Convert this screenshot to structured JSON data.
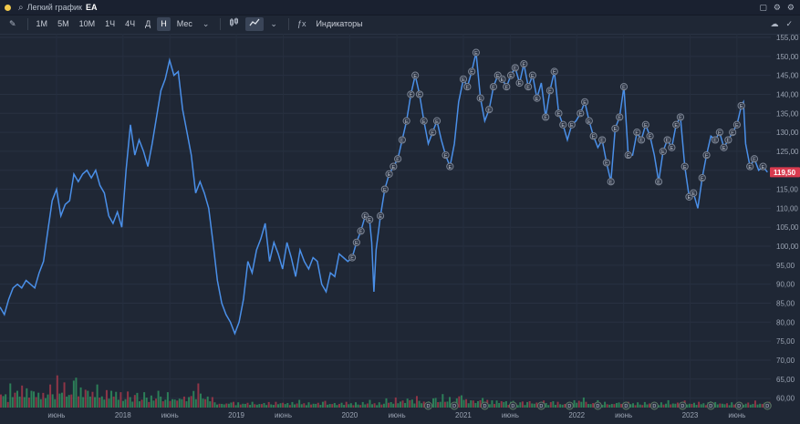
{
  "window": {
    "search_icon": "⌕",
    "title": "Легкий график",
    "ticker": "EA",
    "right_icons": [
      "▢",
      "⚙",
      "⚙"
    ]
  },
  "toolbar": {
    "pencil_icon": "✎",
    "timeframes": [
      "1М",
      "5М",
      "10М",
      "1Ч",
      "4Ч",
      "Д",
      "Н",
      "Мес"
    ],
    "active_timeframe": "Н",
    "dropdown_icon": "⌄",
    "indicators_label": "Индикаторы",
    "indicators_icon": "ƒx",
    "cloud_icon": "☁",
    "check_icon": "✓"
  },
  "colors": {
    "line": "#4a8fe8",
    "price_tag": "#d93b4f",
    "vol_up": "#2f8f5e",
    "vol_down": "#a5384a",
    "marker": "#7c8594",
    "dividend": "#5d7a64"
  },
  "price_tag": "119,50",
  "dividend_letter": "D",
  "event_letter": "E",
  "chart_data": {
    "type": "line",
    "ylim": [
      57.5,
      155
    ],
    "yticks": [
      "155,00",
      "150,00",
      "145,00",
      "140,00",
      "135,00",
      "130,00",
      "125,00",
      "120,00",
      "115,00",
      "110,00",
      "105,00",
      "100,00",
      "95,00",
      "90,00",
      "85,00",
      "80,00",
      "75,00",
      "70,00",
      "65,00",
      "60,00"
    ],
    "ytick_values": [
      155,
      150,
      145,
      140,
      135,
      130,
      125,
      120,
      115,
      110,
      105,
      100,
      95,
      90,
      85,
      80,
      75,
      70,
      65,
      60
    ],
    "xticks": [
      "июнь",
      "2018",
      "июнь",
      "2019",
      "июнь",
      "2020",
      "июнь",
      "2021",
      "июнь",
      "2022",
      "июнь",
      "2023",
      "июнь"
    ],
    "xtick_dates": [
      "2017-06-01",
      "2018-01-01",
      "2018-06-01",
      "2019-01-01",
      "2019-06-01",
      "2020-01-01",
      "2020-06-01",
      "2021-01-01",
      "2021-06-01",
      "2022-01-01",
      "2022-06-01",
      "2023-01-01",
      "2023-06-01"
    ],
    "series": [
      {
        "values": [
          [
            "2016-12-01",
            84
          ],
          [
            "2016-12-15",
            82
          ],
          [
            "2016-12-29",
            86
          ],
          [
            "2017-01-12",
            89
          ],
          [
            "2017-01-26",
            90
          ],
          [
            "2017-02-09",
            89
          ],
          [
            "2017-02-23",
            91
          ],
          [
            "2017-03-09",
            90
          ],
          [
            "2017-03-23",
            89
          ],
          [
            "2017-04-06",
            93
          ],
          [
            "2017-04-20",
            96
          ],
          [
            "2017-05-04",
            104
          ],
          [
            "2017-05-18",
            112
          ],
          [
            "2017-06-01",
            115
          ],
          [
            "2017-06-15",
            108
          ],
          [
            "2017-06-29",
            111
          ],
          [
            "2017-07-13",
            112
          ],
          [
            "2017-07-27",
            119
          ],
          [
            "2017-08-10",
            117
          ],
          [
            "2017-08-24",
            119
          ],
          [
            "2017-09-07",
            120
          ],
          [
            "2017-09-21",
            118
          ],
          [
            "2017-10-05",
            120
          ],
          [
            "2017-10-19",
            116
          ],
          [
            "2017-11-02",
            114
          ],
          [
            "2017-11-16",
            108
          ],
          [
            "2017-11-30",
            106
          ],
          [
            "2017-12-14",
            109
          ],
          [
            "2017-12-28",
            105
          ],
          [
            "2018-01-11",
            120
          ],
          [
            "2018-01-25",
            132
          ],
          [
            "2018-02-08",
            124
          ],
          [
            "2018-02-22",
            128
          ],
          [
            "2018-03-08",
            125
          ],
          [
            "2018-03-22",
            121
          ],
          [
            "2018-04-05",
            127
          ],
          [
            "2018-04-19",
            134
          ],
          [
            "2018-05-03",
            141
          ],
          [
            "2018-05-17",
            144
          ],
          [
            "2018-05-31",
            149
          ],
          [
            "2018-06-14",
            145
          ],
          [
            "2018-06-28",
            146
          ],
          [
            "2018-07-12",
            136
          ],
          [
            "2018-07-26",
            130
          ],
          [
            "2018-08-09",
            124
          ],
          [
            "2018-08-23",
            114
          ],
          [
            "2018-09-06",
            117
          ],
          [
            "2018-09-20",
            114
          ],
          [
            "2018-10-04",
            110
          ],
          [
            "2018-10-18",
            101
          ],
          [
            "2018-11-01",
            91
          ],
          [
            "2018-11-15",
            85
          ],
          [
            "2018-11-29",
            82
          ],
          [
            "2018-12-13",
            80
          ],
          [
            "2018-12-27",
            77
          ],
          [
            "2019-01-10",
            80
          ],
          [
            "2019-01-24",
            86
          ],
          [
            "2019-02-07",
            96
          ],
          [
            "2019-02-21",
            93
          ],
          [
            "2019-03-07",
            99
          ],
          [
            "2019-03-21",
            102
          ],
          [
            "2019-04-04",
            106
          ],
          [
            "2019-04-18",
            96
          ],
          [
            "2019-05-02",
            101
          ],
          [
            "2019-05-16",
            98
          ],
          [
            "2019-05-30",
            94
          ],
          [
            "2019-06-13",
            101
          ],
          [
            "2019-06-27",
            97
          ],
          [
            "2019-07-11",
            92
          ],
          [
            "2019-07-25",
            99
          ],
          [
            "2019-08-08",
            96
          ],
          [
            "2019-08-22",
            94
          ],
          [
            "2019-09-05",
            97
          ],
          [
            "2019-09-19",
            96
          ],
          [
            "2019-10-03",
            90
          ],
          [
            "2019-10-17",
            88
          ],
          [
            "2019-10-31",
            93
          ],
          [
            "2019-11-14",
            92
          ],
          [
            "2019-11-28",
            98
          ],
          [
            "2019-12-12",
            97
          ],
          [
            "2019-12-26",
            96
          ],
          [
            "2020-01-09",
            97
          ],
          [
            "2020-01-23",
            101
          ],
          [
            "2020-02-06",
            104
          ],
          [
            "2020-02-20",
            108
          ],
          [
            "2020-03-05",
            107
          ],
          [
            "2020-03-12",
            101
          ],
          [
            "2020-03-19",
            88
          ],
          [
            "2020-03-26",
            99
          ],
          [
            "2020-04-09",
            108
          ],
          [
            "2020-04-23",
            115
          ],
          [
            "2020-05-07",
            119
          ],
          [
            "2020-05-21",
            121
          ],
          [
            "2020-06-04",
            123
          ],
          [
            "2020-06-18",
            128
          ],
          [
            "2020-07-02",
            133
          ],
          [
            "2020-07-16",
            140
          ],
          [
            "2020-07-30",
            145
          ],
          [
            "2020-08-13",
            140
          ],
          [
            "2020-08-27",
            133
          ],
          [
            "2020-09-10",
            127
          ],
          [
            "2020-09-24",
            130
          ],
          [
            "2020-10-08",
            133
          ],
          [
            "2020-10-22",
            128
          ],
          [
            "2020-11-05",
            124
          ],
          [
            "2020-11-19",
            121
          ],
          [
            "2020-12-03",
            127
          ],
          [
            "2020-12-17",
            138
          ],
          [
            "2021-01-01",
            144
          ],
          [
            "2021-01-14",
            142
          ],
          [
            "2021-01-28",
            146
          ],
          [
            "2021-02-11",
            151
          ],
          [
            "2021-02-25",
            139
          ],
          [
            "2021-03-11",
            133
          ],
          [
            "2021-03-25",
            136
          ],
          [
            "2021-04-08",
            142
          ],
          [
            "2021-04-22",
            145
          ],
          [
            "2021-05-06",
            144
          ],
          [
            "2021-05-20",
            142
          ],
          [
            "2021-06-03",
            145
          ],
          [
            "2021-06-17",
            147
          ],
          [
            "2021-07-01",
            143
          ],
          [
            "2021-07-15",
            148
          ],
          [
            "2021-07-29",
            142
          ],
          [
            "2021-08-12",
            145
          ],
          [
            "2021-08-26",
            139
          ],
          [
            "2021-09-09",
            143
          ],
          [
            "2021-09-23",
            134
          ],
          [
            "2021-10-07",
            141
          ],
          [
            "2021-10-21",
            146
          ],
          [
            "2021-11-04",
            135
          ],
          [
            "2021-11-18",
            132
          ],
          [
            "2021-12-02",
            128
          ],
          [
            "2021-12-16",
            132
          ],
          [
            "2021-12-30",
            133
          ],
          [
            "2022-01-13",
            135
          ],
          [
            "2022-01-27",
            138
          ],
          [
            "2022-02-10",
            133
          ],
          [
            "2022-02-24",
            129
          ],
          [
            "2022-03-10",
            126
          ],
          [
            "2022-03-24",
            128
          ],
          [
            "2022-04-07",
            122
          ],
          [
            "2022-04-21",
            117
          ],
          [
            "2022-05-05",
            131
          ],
          [
            "2022-05-19",
            134
          ],
          [
            "2022-06-02",
            142
          ],
          [
            "2022-06-16",
            124
          ],
          [
            "2022-06-30",
            124
          ],
          [
            "2022-07-14",
            130
          ],
          [
            "2022-07-28",
            128
          ],
          [
            "2022-08-11",
            132
          ],
          [
            "2022-08-25",
            129
          ],
          [
            "2022-09-08",
            124
          ],
          [
            "2022-09-22",
            117
          ],
          [
            "2022-10-06",
            125
          ],
          [
            "2022-10-20",
            128
          ],
          [
            "2022-11-03",
            126
          ],
          [
            "2022-11-17",
            132
          ],
          [
            "2022-12-01",
            134
          ],
          [
            "2022-12-15",
            121
          ],
          [
            "2022-12-29",
            113
          ],
          [
            "2023-01-12",
            114
          ],
          [
            "2023-01-26",
            110
          ],
          [
            "2023-02-09",
            118
          ],
          [
            "2023-02-23",
            124
          ],
          [
            "2023-03-09",
            129
          ],
          [
            "2023-03-23",
            128
          ],
          [
            "2023-04-06",
            130
          ],
          [
            "2023-04-20",
            126
          ],
          [
            "2023-05-04",
            128
          ],
          [
            "2023-05-18",
            130
          ],
          [
            "2023-06-01",
            132
          ],
          [
            "2023-06-15",
            137
          ],
          [
            "2023-06-22",
            138
          ],
          [
            "2023-06-29",
            127
          ],
          [
            "2023-07-13",
            121
          ],
          [
            "2023-07-27",
            123
          ],
          [
            "2023-08-10",
            120
          ],
          [
            "2023-08-24",
            121
          ],
          [
            "2023-09-07",
            119.5
          ]
        ]
      }
    ],
    "dividend_markers": [
      "2020-09-10",
      "2020-12-03",
      "2021-03-11",
      "2021-06-10",
      "2021-09-09",
      "2021-12-09",
      "2022-03-10",
      "2022-06-09",
      "2022-09-08",
      "2022-12-08",
      "2023-03-09",
      "2023-06-08",
      "2023-09-07"
    ],
    "event_markers": [
      "2020-01-09",
      "2020-01-23",
      "2020-02-06",
      "2020-02-20",
      "2020-03-05",
      "2020-04-09",
      "2020-04-23",
      "2020-05-07",
      "2020-05-21",
      "2020-06-04",
      "2020-06-18",
      "2020-07-02",
      "2020-07-16",
      "2020-07-30",
      "2020-08-13",
      "2020-08-27",
      "2020-09-24",
      "2020-10-08",
      "2020-11-05",
      "2020-11-19",
      "2021-01-01",
      "2021-01-14",
      "2021-01-28",
      "2021-02-11",
      "2021-02-25",
      "2021-03-25",
      "2021-04-08",
      "2021-04-22",
      "2021-05-06",
      "2021-05-20",
      "2021-06-03",
      "2021-06-17",
      "2021-07-01",
      "2021-07-15",
      "2021-07-29",
      "2021-08-12",
      "2021-08-26",
      "2021-09-23",
      "2021-10-07",
      "2021-10-21",
      "2021-11-04",
      "2021-11-18",
      "2021-12-16",
      "2022-01-13",
      "2022-01-27",
      "2022-02-10",
      "2022-02-24",
      "2022-03-24",
      "2022-04-07",
      "2022-04-21",
      "2022-05-05",
      "2022-05-19",
      "2022-06-02",
      "2022-06-16",
      "2022-07-14",
      "2022-07-28",
      "2022-08-11",
      "2022-08-25",
      "2022-09-22",
      "2022-10-06",
      "2022-10-20",
      "2022-11-03",
      "2022-11-17",
      "2022-12-01",
      "2022-12-15",
      "2022-12-29",
      "2023-01-12",
      "2023-02-09",
      "2023-02-23",
      "2023-03-23",
      "2023-04-06",
      "2023-04-20",
      "2023-05-04",
      "2023-05-18",
      "2023-06-01",
      "2023-06-15",
      "2023-07-13",
      "2023-07-27",
      "2023-08-24"
    ],
    "volume": {
      "description": "weekly volume bars, heights relative (0-1)",
      "levels": [
        0.5,
        0.3,
        0.4,
        0.2,
        0.6,
        0.3,
        0.5,
        0.4,
        0.3,
        0.7,
        0.4,
        0.5,
        0.3,
        0.6,
        0.4,
        0.3,
        0.5,
        0.2,
        0.4,
        0.3,
        0.5,
        0.6,
        0.4,
        0.3,
        0.8,
        0.4,
        0.5,
        0.6,
        0.3,
        0.4,
        0.5,
        0.7,
        0.9,
        0.4,
        0.5,
        0.3,
        0.6,
        0.4,
        0.3,
        0.5,
        0.4,
        0.6,
        0.3,
        0.4,
        0.2,
        0.5,
        0.3,
        0.4,
        0.3,
        0.5,
        0.3,
        0.4,
        0.2,
        0.3,
        0.4,
        0.3,
        0.2,
        0.3,
        0.4,
        0.2,
        0.3,
        0.4,
        0.3,
        0.2,
        0.3,
        0.2,
        0.3,
        0.4,
        0.3,
        0.2,
        0.3,
        0.4,
        0.2,
        0.3,
        0.2,
        0.2,
        0.3,
        0.2,
        0.3,
        0.2,
        0.4,
        0.3,
        0.5,
        0.3,
        0.6,
        0.4,
        0.3,
        0.2,
        0.3,
        0.2,
        0.4,
        0.3,
        0.2,
        0.3,
        0.2,
        0.2,
        0.3,
        0.2,
        0.3,
        0.4,
        0.2,
        0.3,
        0.2,
        0.3,
        0.2,
        0.3,
        0.2,
        0.3,
        0.2,
        0.2,
        0.3,
        0.2,
        0.3,
        0.2,
        0.3,
        0.2,
        0.2,
        0.3,
        0.2,
        0.3,
        0.4,
        0.2,
        0.3,
        0.2,
        0.3,
        0.2,
        0.3,
        0.4,
        0.2,
        0.3,
        0.2,
        0.3,
        0.2,
        0.3,
        0.2,
        0.3,
        0.2,
        0.3,
        0.4,
        0.2,
        0.3,
        0.2,
        0.3,
        0.2,
        0.2,
        0.3,
        0.2,
        0.3,
        0.2,
        0.3,
        0.2,
        0.3,
        0.2,
        0.2,
        0.3,
        0.2,
        0.3,
        0.4,
        0.2,
        0.3,
        0.2,
        0.3,
        0.2,
        0.3
      ]
    }
  }
}
